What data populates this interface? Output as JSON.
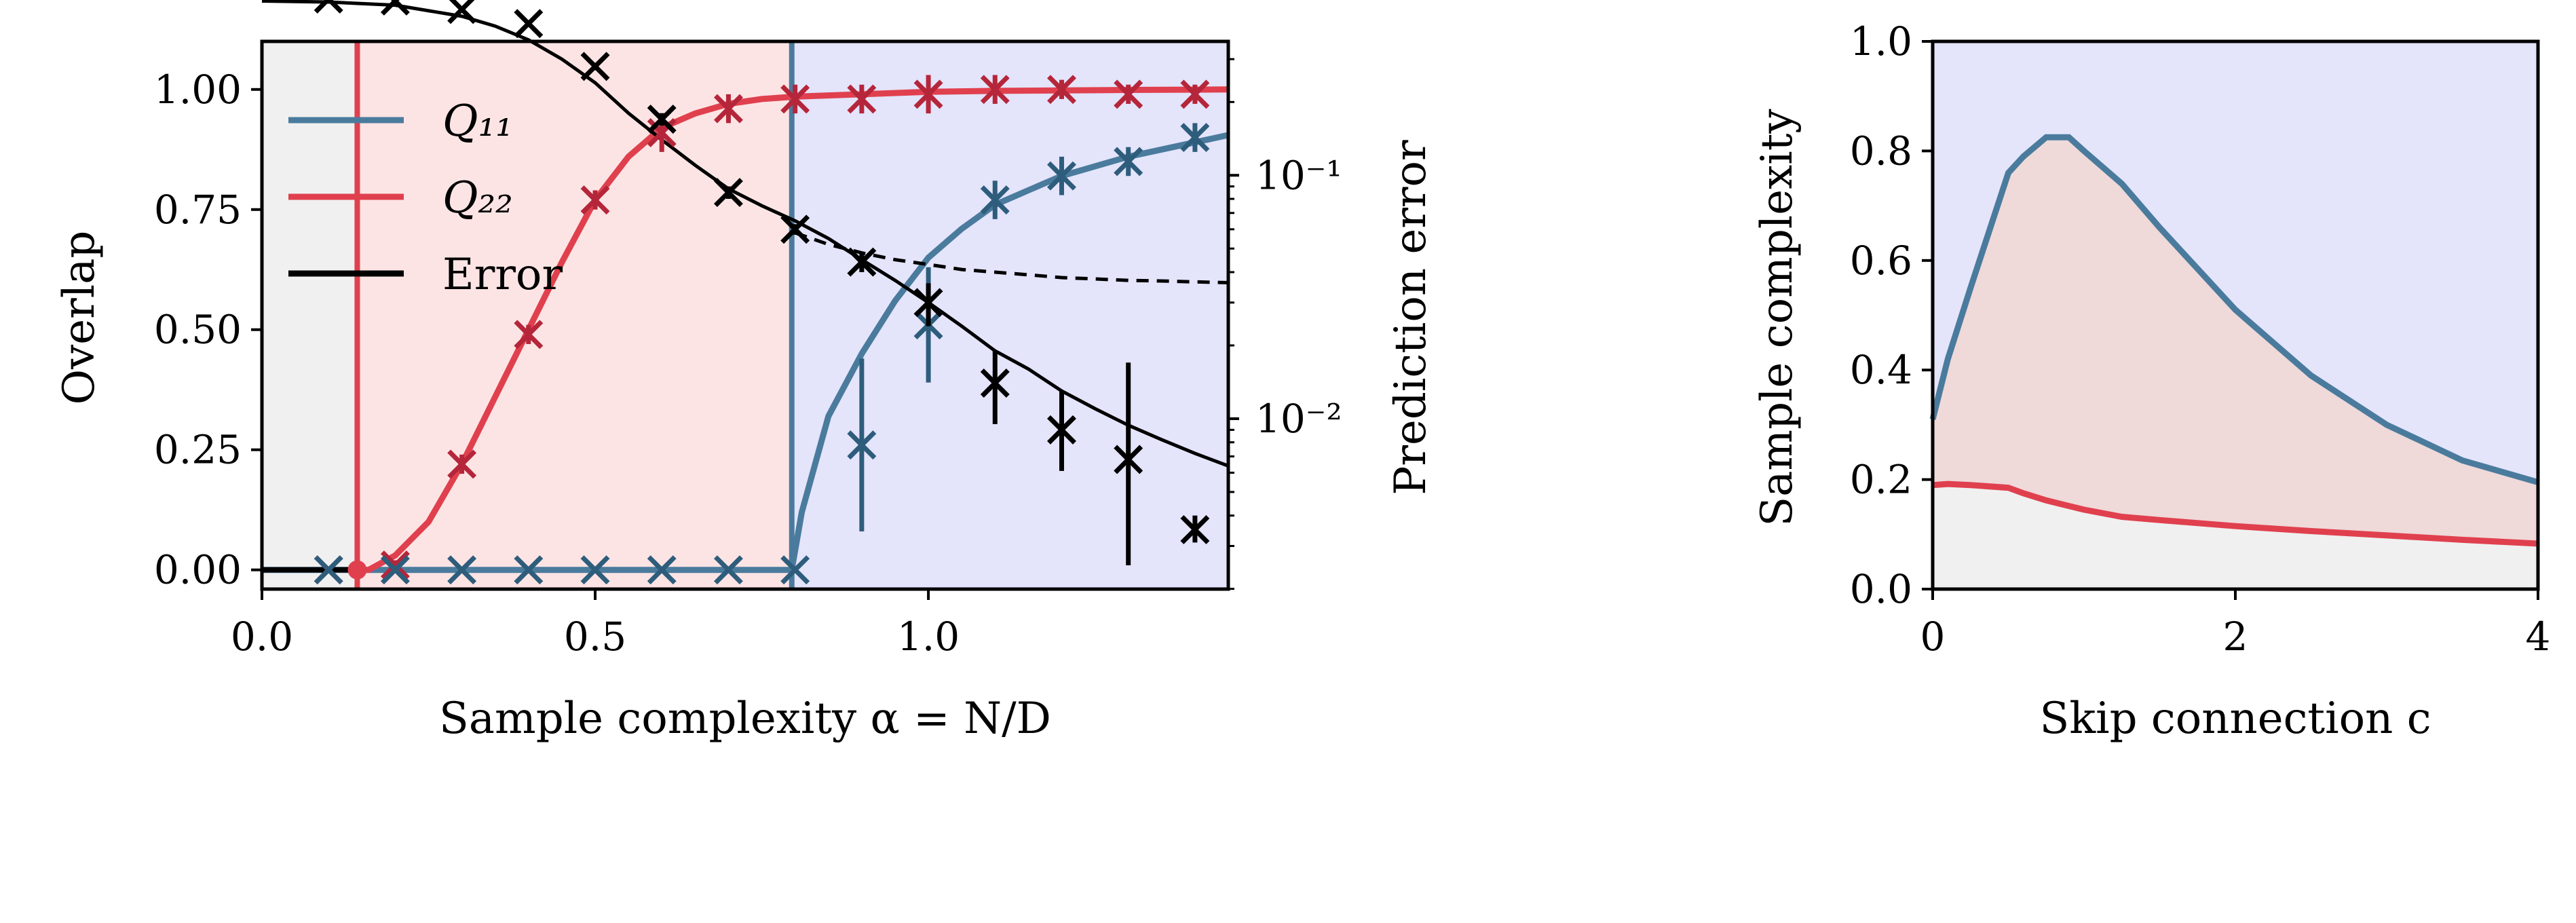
{
  "colors": {
    "q11": "#4a7b9d",
    "q22": "#e0404e",
    "error": "#000000",
    "q11_markers": "#2e5d7c",
    "q22_markers": "#b5263a",
    "region_gray": "#f0f0f0",
    "region_red": "#fde4e4",
    "region_blue": "#e4e4fb",
    "region_red_right": "#efd9d9"
  },
  "chart_data": [
    {
      "type": "line",
      "xlabel": "Sample complexity α = N/D",
      "ylabel": "Overlap",
      "ylabel_right": "Prediction error",
      "xlim": [
        0.0,
        1.45
      ],
      "ylim": [
        -0.04,
        1.1
      ],
      "y2lim_log10": [
        -2.7,
        -0.45
      ],
      "y2scale": "log",
      "xticks": [
        0.0,
        0.5,
        1.0
      ],
      "xtick_labels": [
        "0.0",
        "0.5",
        "1.0"
      ],
      "yticks": [
        0.0,
        0.25,
        0.5,
        0.75,
        1.0
      ],
      "ytick_labels": [
        "0.00",
        "0.25",
        "0.50",
        "0.75",
        "1.00"
      ],
      "y2ticks_log10": [
        -2,
        -1
      ],
      "y2tick_labels": [
        "10⁻²",
        "10⁻¹"
      ],
      "grid": false,
      "legend": {
        "position": "upper-left",
        "entries": [
          {
            "key": "q11",
            "label": "Q₁₁"
          },
          {
            "key": "q22",
            "label": "Q₂₂"
          },
          {
            "key": "error",
            "label": "Error"
          }
        ]
      },
      "transitions": {
        "alpha_1": 0.143,
        "alpha_2": 0.795
      },
      "series": [
        {
          "name": "Q₁₁",
          "x": [
            0.0,
            0.795,
            0.81,
            0.85,
            0.9,
            0.95,
            1.0,
            1.05,
            1.1,
            1.15,
            1.2,
            1.25,
            1.3,
            1.35,
            1.4,
            1.45
          ],
          "y": [
            0.0,
            0.0,
            0.12,
            0.32,
            0.45,
            0.56,
            0.65,
            0.71,
            0.76,
            0.79,
            0.82,
            0.84,
            0.86,
            0.875,
            0.89,
            0.905
          ],
          "markers": {
            "x": [
              0.1,
              0.2,
              0.3,
              0.4,
              0.5,
              0.6,
              0.7,
              0.8,
              0.9,
              1.0,
              1.1,
              1.2,
              1.3,
              1.4
            ],
            "y": [
              0.0,
              0.0,
              0.0,
              0.0,
              0.0,
              0.0,
              0.0,
              0.0,
              0.26,
              0.51,
              0.77,
              0.82,
              0.85,
              0.9
            ],
            "err": [
              0.0,
              0.0,
              0.0,
              0.0,
              0.0,
              0.0,
              0.0,
              0.0,
              0.18,
              0.12,
              0.04,
              0.04,
              0.03,
              0.03
            ]
          }
        },
        {
          "name": "Q₂₂",
          "x": [
            0.143,
            0.16,
            0.2,
            0.25,
            0.3,
            0.35,
            0.4,
            0.45,
            0.5,
            0.55,
            0.6,
            0.65,
            0.7,
            0.75,
            0.8,
            0.9,
            1.0,
            1.1,
            1.2,
            1.3,
            1.45
          ],
          "y": [
            0.0,
            0.0,
            0.03,
            0.1,
            0.22,
            0.36,
            0.5,
            0.64,
            0.77,
            0.86,
            0.92,
            0.95,
            0.97,
            0.98,
            0.985,
            0.99,
            0.995,
            0.997,
            0.998,
            0.999,
            1.0
          ],
          "markers": {
            "x": [
              0.1,
              0.2,
              0.3,
              0.4,
              0.5,
              0.6,
              0.7,
              0.8,
              0.9,
              1.0,
              1.1,
              1.2,
              1.3,
              1.4
            ],
            "y": [
              0.0,
              0.01,
              0.22,
              0.49,
              0.77,
              0.91,
              0.96,
              0.98,
              0.98,
              0.99,
              1.0,
              1.0,
              0.99,
              0.99
            ],
            "err": [
              0.0,
              0.01,
              0.02,
              0.02,
              0.02,
              0.04,
              0.03,
              0.03,
              0.03,
              0.04,
              0.03,
              0.02,
              0.02,
              0.02
            ]
          }
        },
        {
          "name": "Error",
          "x": [
            0.0,
            0.1,
            0.2,
            0.3,
            0.35,
            0.4,
            0.45,
            0.5,
            0.55,
            0.6,
            0.65,
            0.7,
            0.75,
            0.8,
            0.85,
            0.9,
            0.95,
            1.0,
            1.05,
            1.1,
            1.15,
            1.2,
            1.25,
            1.3,
            1.35,
            1.4,
            1.45
          ],
          "y": [
            0.52,
            0.515,
            0.5,
            0.45,
            0.41,
            0.36,
            0.3,
            0.24,
            0.18,
            0.14,
            0.11,
            0.088,
            0.075,
            0.065,
            0.055,
            0.045,
            0.037,
            0.03,
            0.024,
            0.019,
            0.016,
            0.013,
            0.011,
            0.0094,
            0.0082,
            0.0072,
            0.0064
          ],
          "dashed": {
            "x": [
              0.8,
              0.85,
              0.9,
              0.95,
              1.0,
              1.05,
              1.1,
              1.15,
              1.2,
              1.25,
              1.3,
              1.35,
              1.4,
              1.45
            ],
            "y": [
              0.058,
              0.052,
              0.048,
              0.045,
              0.043,
              0.041,
              0.04,
              0.039,
              0.038,
              0.0375,
              0.037,
              0.0368,
              0.0365,
              0.0362
            ]
          },
          "markers": {
            "x": [
              0.1,
              0.2,
              0.3,
              0.4,
              0.5,
              0.6,
              0.7,
              0.8,
              0.9,
              1.0,
              1.1,
              1.2,
              1.3,
              1.4
            ],
            "y": [
              0.53,
              0.52,
              0.48,
              0.42,
              0.28,
              0.17,
              0.085,
              0.06,
              0.044,
              0.03,
              0.014,
              0.009,
              0.0068,
              0.0035
            ],
            "err_lo": [
              0.53,
              0.52,
              0.48,
              0.42,
              0.27,
              0.16,
              0.08,
              0.057,
              0.04,
              0.024,
              0.0095,
              0.0061,
              0.0025,
              0.0031
            ],
            "err_hi": [
              0.53,
              0.52,
              0.48,
              0.42,
              0.29,
              0.18,
              0.09,
              0.063,
              0.048,
              0.036,
              0.019,
              0.013,
              0.017,
              0.004
            ]
          }
        }
      ]
    },
    {
      "type": "area",
      "xlabel": "Skip connection c",
      "ylabel": "Sample complexity",
      "xlim": [
        0,
        4
      ],
      "ylim": [
        0.0,
        1.0
      ],
      "xticks": [
        0,
        2,
        4
      ],
      "xtick_labels": [
        "0",
        "2",
        "4"
      ],
      "yticks": [
        0.0,
        0.2,
        0.4,
        0.6,
        0.8,
        1.0
      ],
      "ytick_labels": [
        "0.0",
        "0.2",
        "0.4",
        "0.6",
        "0.8",
        "1.0"
      ],
      "grid": false,
      "series": [
        {
          "key": "upper",
          "x": [
            0.0,
            0.1,
            0.25,
            0.5,
            0.6,
            0.75,
            0.9,
            1.0,
            1.25,
            1.5,
            2.0,
            2.5,
            3.0,
            3.5,
            4.0
          ],
          "y": [
            0.31,
            0.42,
            0.55,
            0.76,
            0.79,
            0.825,
            0.825,
            0.8,
            0.74,
            0.66,
            0.51,
            0.39,
            0.3,
            0.235,
            0.195
          ]
        },
        {
          "key": "lower",
          "x": [
            0.0,
            0.1,
            0.25,
            0.5,
            0.6,
            0.75,
            1.0,
            1.25,
            1.5,
            2.0,
            2.5,
            3.0,
            3.5,
            4.0
          ],
          "y": [
            0.19,
            0.192,
            0.19,
            0.185,
            0.175,
            0.162,
            0.145,
            0.132,
            0.126,
            0.115,
            0.106,
            0.098,
            0.09,
            0.083
          ]
        }
      ]
    }
  ]
}
